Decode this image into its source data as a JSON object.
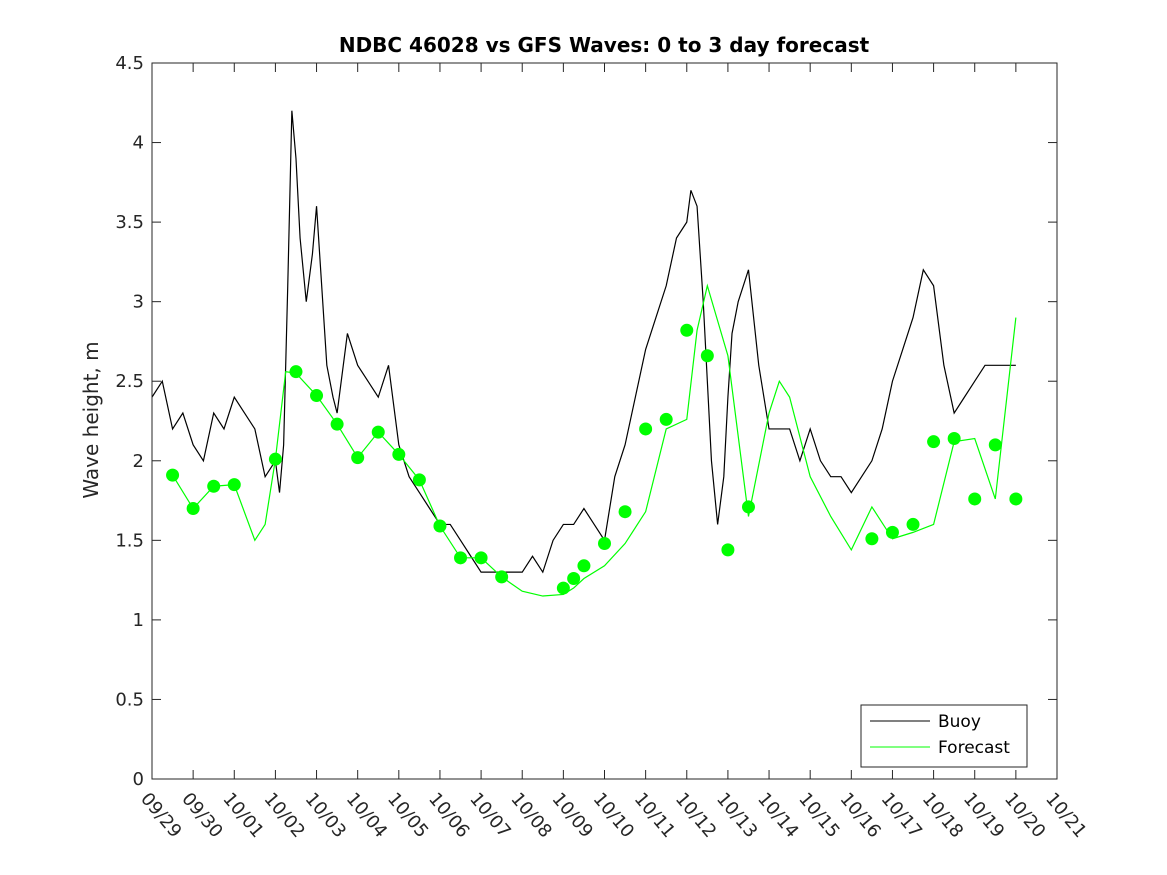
{
  "chart_data": {
    "type": "line",
    "title": "NDBC 46028 vs GFS Waves: 0 to 3 day forecast",
    "xlabel": "",
    "ylabel": "Wave height, m",
    "xlim": [
      0,
      22
    ],
    "ylim": [
      0,
      4.5
    ],
    "grid": false,
    "legend_position": "bottom-right",
    "x_tick_labels": [
      "09/29",
      "09/30",
      "10/01",
      "10/02",
      "10/03",
      "10/04",
      "10/05",
      "10/06",
      "10/07",
      "10/08",
      "10/09",
      "10/10",
      "10/11",
      "10/12",
      "10/13",
      "10/14",
      "10/15",
      "10/16",
      "10/17",
      "10/18",
      "10/19",
      "10/20",
      "10/21"
    ],
    "y_ticks": [
      "0",
      "0.5",
      "1",
      "1.5",
      "2",
      "2.5",
      "3",
      "3.5",
      "4",
      "4.5"
    ],
    "y_tick_values": [
      0,
      0.5,
      1,
      1.5,
      2,
      2.5,
      3,
      3.5,
      4,
      4.5
    ],
    "colors": {
      "buoy": "#000000",
      "forecast": "#00ff00"
    },
    "series": [
      {
        "name": "Buoy",
        "x": [
          0.0,
          0.25,
          0.5,
          0.75,
          1.0,
          1.25,
          1.5,
          1.75,
          2.0,
          2.25,
          2.5,
          2.75,
          3.0,
          3.1,
          3.2,
          3.3,
          3.4,
          3.5,
          3.6,
          3.75,
          3.9,
          4.0,
          4.1,
          4.25,
          4.4,
          4.5,
          4.75,
          5.0,
          5.25,
          5.5,
          5.75,
          6.0,
          6.25,
          6.5,
          6.75,
          7.0,
          7.25,
          7.5,
          7.75,
          8.0,
          8.25,
          8.5,
          8.75,
          9.0,
          9.25,
          9.5,
          9.75,
          10.0,
          10.25,
          10.5,
          10.75,
          11.0,
          11.25,
          11.5,
          11.75,
          12.0,
          12.25,
          12.5,
          12.75,
          13.0,
          13.1,
          13.25,
          13.4,
          13.5,
          13.6,
          13.75,
          13.9,
          14.0,
          14.1,
          14.25,
          14.5,
          14.75,
          15.0,
          15.25,
          15.5,
          15.75,
          16.0,
          16.25,
          16.5,
          16.75,
          17.0,
          17.25,
          17.5,
          17.75,
          18.0,
          18.25,
          18.5,
          18.75,
          19.0,
          19.25,
          19.5,
          19.75,
          20.0,
          20.25,
          20.5,
          20.75,
          21.0
        ],
        "y": [
          2.4,
          2.5,
          2.2,
          2.3,
          2.1,
          2.0,
          2.3,
          2.2,
          2.4,
          2.3,
          2.2,
          1.9,
          2.0,
          1.8,
          2.1,
          3.1,
          4.2,
          3.9,
          3.4,
          3.0,
          3.3,
          3.6,
          3.2,
          2.6,
          2.4,
          2.3,
          2.8,
          2.6,
          2.5,
          2.4,
          2.6,
          2.1,
          1.9,
          1.8,
          1.7,
          1.6,
          1.6,
          1.5,
          1.4,
          1.3,
          1.3,
          1.3,
          1.3,
          1.3,
          1.4,
          1.3,
          1.5,
          1.6,
          1.6,
          1.7,
          1.6,
          1.5,
          1.9,
          2.1,
          2.4,
          2.7,
          2.9,
          3.1,
          3.4,
          3.5,
          3.7,
          3.6,
          3.0,
          2.5,
          2.0,
          1.6,
          1.9,
          2.4,
          2.8,
          3.0,
          3.2,
          2.6,
          2.2,
          2.2,
          2.2,
          2.0,
          2.2,
          2.0,
          1.9,
          1.9,
          1.8,
          1.9,
          2.0,
          2.2,
          2.5,
          2.7,
          2.9,
          3.2,
          3.1,
          2.6,
          2.3,
          2.4,
          2.5,
          2.6,
          2.6,
          2.6,
          2.6
        ]
      },
      {
        "name": "Forecast",
        "x": [
          0.5,
          1.0,
          1.5,
          2.0,
          2.5,
          2.75,
          3.0,
          3.25,
          3.5,
          4.0,
          4.5,
          5.0,
          5.5,
          6.0,
          6.5,
          7.0,
          7.5,
          8.0,
          8.5,
          9.0,
          9.5,
          10.0,
          10.25,
          10.5,
          11.0,
          11.5,
          12.0,
          12.5,
          13.0,
          13.25,
          13.5,
          14.0,
          14.5,
          15.0,
          15.25,
          15.5,
          16.0,
          16.5,
          17.0,
          17.5,
          18.0,
          18.5,
          19.0,
          19.5,
          20.0,
          20.5,
          21.0
        ],
        "y": [
          1.91,
          1.7,
          1.84,
          1.85,
          1.5,
          1.6,
          2.01,
          2.56,
          2.55,
          2.41,
          2.23,
          2.02,
          2.18,
          2.04,
          1.88,
          1.59,
          1.39,
          1.39,
          1.27,
          1.18,
          1.15,
          1.16,
          1.2,
          1.26,
          1.34,
          1.48,
          1.68,
          2.2,
          2.26,
          2.82,
          3.1,
          2.66,
          1.65,
          2.3,
          2.5,
          2.4,
          1.9,
          1.65,
          1.44,
          1.71,
          1.51,
          1.55,
          1.6,
          2.12,
          2.14,
          1.76,
          2.9
        ]
      }
    ],
    "forecast_markers": {
      "x": [
        0.5,
        1.0,
        1.5,
        2.0,
        3.0,
        3.5,
        4.0,
        4.5,
        5.0,
        5.5,
        6.0,
        6.5,
        7.0,
        7.5,
        8.0,
        8.5,
        10.0,
        10.25,
        10.5,
        11.0,
        11.5,
        12.0,
        12.5,
        13.0,
        13.5,
        14.0,
        14.5,
        17.5,
        18.0,
        18.5,
        19.0,
        19.5,
        20.0,
        20.5,
        21.0
      ],
      "y": [
        1.91,
        1.7,
        1.84,
        1.85,
        2.01,
        2.56,
        2.41,
        2.23,
        2.02,
        2.18,
        2.04,
        1.88,
        1.59,
        1.39,
        1.39,
        1.27,
        1.2,
        1.26,
        1.34,
        1.48,
        1.68,
        2.2,
        2.26,
        2.82,
        2.66,
        1.44,
        1.71,
        1.51,
        1.55,
        1.6,
        2.12,
        2.14,
        1.76,
        2.1,
        1.76
      ]
    },
    "legend": [
      {
        "label": "Buoy",
        "color": "#000000"
      },
      {
        "label": "Forecast",
        "color": "#00ff00"
      }
    ]
  }
}
